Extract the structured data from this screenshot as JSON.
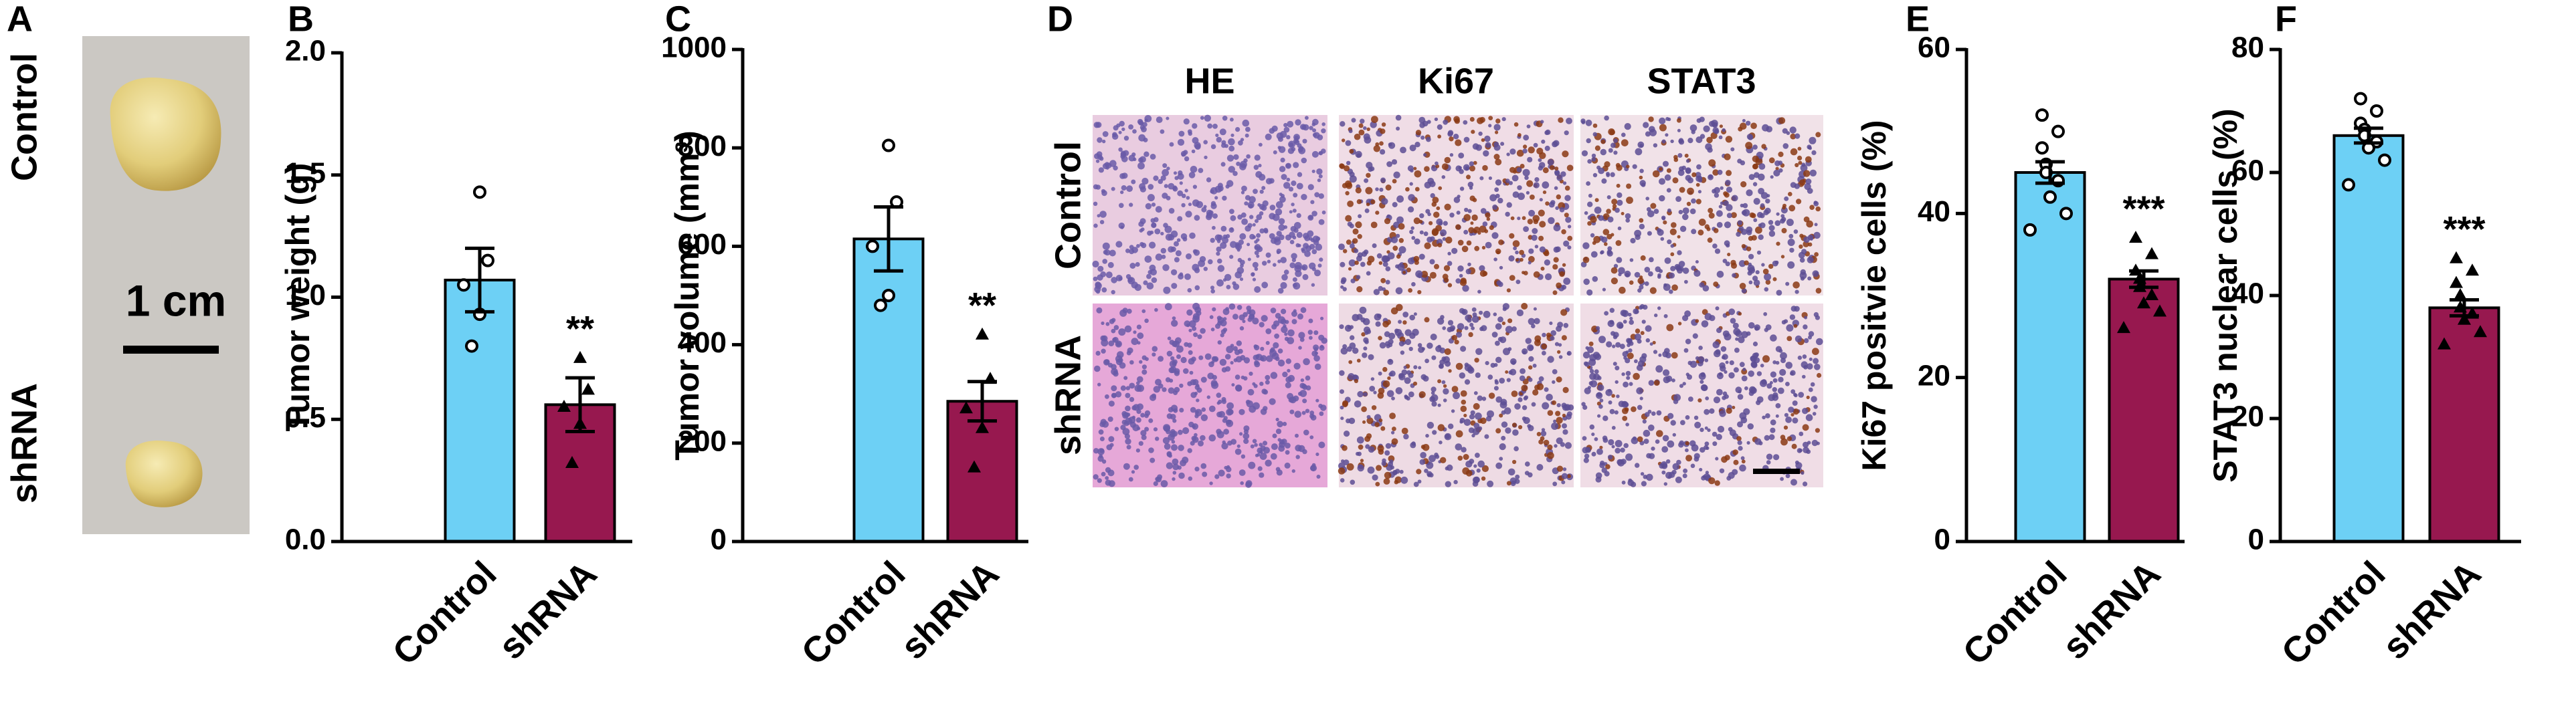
{
  "panel_a": {
    "letter": "A",
    "rows": [
      "Control",
      "shRNA"
    ],
    "scale": "1 cm"
  },
  "panel_d": {
    "letter": "D",
    "columns": [
      "HE",
      "Ki67",
      "STAT3"
    ],
    "rows": [
      "Control",
      "shRNA"
    ]
  },
  "chart_data": [
    {
      "type": "bar",
      "letter": "B",
      "ylabel": "Tumor  weight (g)",
      "categories": [
        "Control",
        "shRNA"
      ],
      "values": [
        1.07,
        0.56
      ],
      "errors": [
        0.13,
        0.11
      ],
      "colors": [
        "#6dd0f5",
        "#97184f"
      ],
      "points": [
        [
          1.43,
          1.15,
          1.05,
          0.93,
          0.8
        ],
        [
          0.75,
          0.62,
          0.55,
          0.48,
          0.32
        ]
      ],
      "significance": "**",
      "ylim": [
        0,
        2
      ],
      "yticks": [
        {
          "value": 0,
          "label": "0.0"
        },
        {
          "value": 0.5,
          "label": "0.5"
        },
        {
          "value": 1,
          "label": "1.0"
        },
        {
          "value": 1.5,
          "label": "1.5"
        },
        {
          "value": 2,
          "label": "2.0"
        }
      ]
    },
    {
      "type": "bar",
      "letter": "C",
      "ylabel": "Tumor  volume (mm³)",
      "categories": [
        "Control",
        "shRNA"
      ],
      "values": [
        615,
        285
      ],
      "errors": [
        65,
        40
      ],
      "colors": [
        "#6dd0f5",
        "#97184f"
      ],
      "points": [
        [
          805,
          690,
          600,
          500,
          480
        ],
        [
          420,
          330,
          270,
          230,
          150
        ]
      ],
      "significance": "**",
      "ylim": [
        0,
        1000
      ],
      "yticks": [
        0,
        200,
        400,
        600,
        800,
        1000
      ]
    },
    {
      "type": "bar",
      "letter": "E",
      "ylabel": "Ki67 positvie cells (%)",
      "categories": [
        "Control",
        "shRNA"
      ],
      "values": [
        45,
        32
      ],
      "errors": [
        1.3,
        1.0
      ],
      "colors": [
        "#6dd0f5",
        "#97184f"
      ],
      "points": [
        [
          52,
          50,
          48,
          46,
          45,
          44,
          42,
          40,
          38
        ],
        [
          37,
          35,
          33,
          32,
          31,
          30,
          29,
          28,
          26
        ]
      ],
      "significance": "***",
      "ylim": [
        0,
        60
      ],
      "yticks": [
        0,
        20,
        40,
        60
      ]
    },
    {
      "type": "bar",
      "letter": "F",
      "ylabel": "STAT3 nuclear cells (%)",
      "categories": [
        "Control",
        "shRNA"
      ],
      "values": [
        66,
        38
      ],
      "errors": [
        1.2,
        1.3
      ],
      "colors": [
        "#6dd0f5",
        "#97184f"
      ],
      "points": [
        [
          72,
          70,
          68,
          67,
          66,
          65,
          64,
          62,
          58
        ],
        [
          46,
          44,
          42,
          40,
          38,
          37,
          36,
          34,
          32
        ]
      ],
      "significance": "***",
      "ylim": [
        0,
        80
      ],
      "yticks": [
        0,
        20,
        40,
        60,
        80
      ]
    }
  ]
}
